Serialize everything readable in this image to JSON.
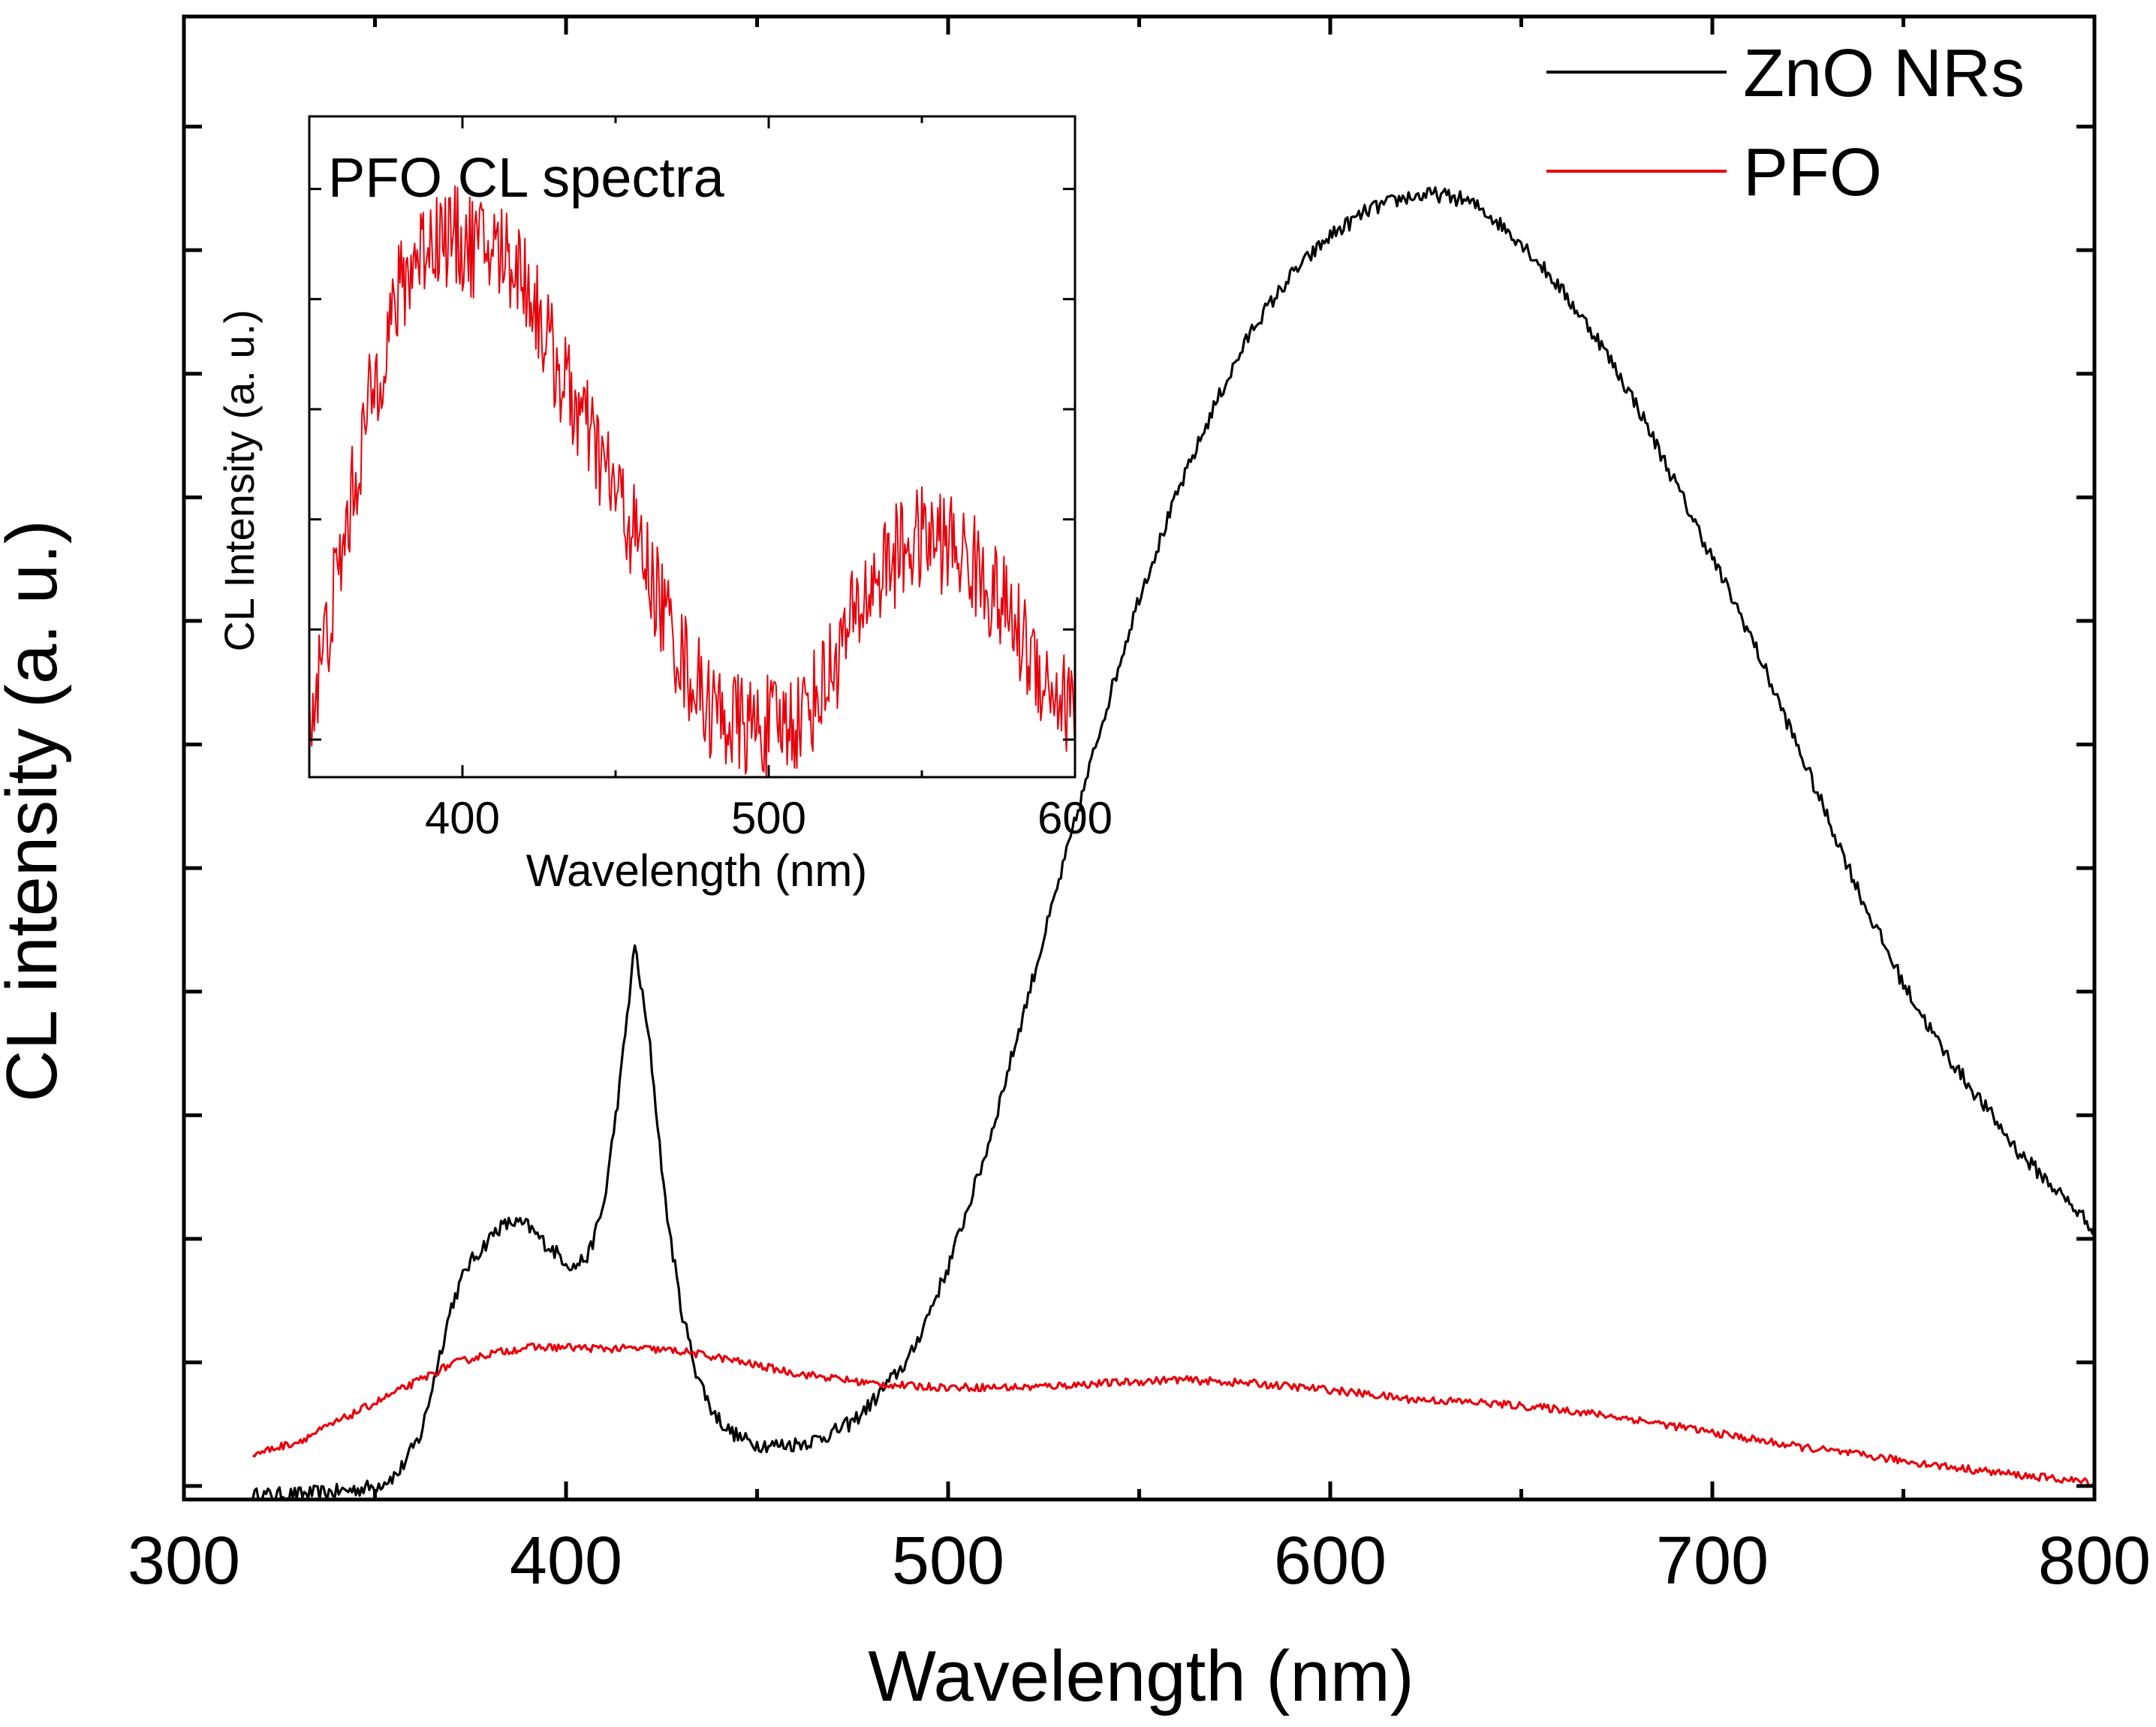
{
  "chart_data": [
    {
      "id": "main",
      "type": "line",
      "title": "",
      "xlabel": "Wavelength (nm)",
      "ylabel": "CL intensity (a. u.)",
      "xlim": [
        300,
        800
      ],
      "ylim": [
        0,
        1.15
      ],
      "x_ticks": [
        300,
        400,
        500,
        600,
        700,
        800
      ],
      "y_tick_count": 12,
      "legend": "top-right",
      "series": [
        {
          "name": "ZnO NRs",
          "color": "#000000",
          "x": [
            318,
            330,
            340,
            350,
            356,
            362,
            366,
            370,
            374,
            378,
            382,
            386,
            390,
            394,
            398,
            402,
            406,
            410,
            414,
            418,
            422,
            426,
            430,
            434,
            438,
            442,
            446,
            450,
            455,
            460,
            465,
            470,
            475,
            480,
            490,
            500,
            510,
            520,
            530,
            540,
            550,
            560,
            570,
            580,
            590,
            600,
            610,
            620,
            628,
            635,
            640,
            650,
            660,
            670,
            680,
            690,
            700,
            710,
            720,
            730,
            740,
            750,
            760,
            770,
            780,
            790,
            800
          ],
          "values": [
            0.003,
            0.004,
            0.006,
            0.01,
            0.02,
            0.05,
            0.1,
            0.15,
            0.18,
            0.195,
            0.21,
            0.215,
            0.212,
            0.2,
            0.19,
            0.18,
            0.19,
            0.23,
            0.32,
            0.43,
            0.35,
            0.23,
            0.15,
            0.1,
            0.07,
            0.055,
            0.047,
            0.043,
            0.042,
            0.043,
            0.046,
            0.052,
            0.06,
            0.075,
            0.11,
            0.18,
            0.27,
            0.38,
            0.49,
            0.6,
            0.7,
            0.78,
            0.85,
            0.91,
            0.95,
            0.98,
            1.0,
            1.01,
            1.012,
            1.008,
            1.0,
            0.975,
            0.94,
            0.9,
            0.85,
            0.79,
            0.73,
            0.67,
            0.6,
            0.53,
            0.46,
            0.4,
            0.35,
            0.31,
            0.27,
            0.24,
            0.21
          ],
          "noise": 0.006
        },
        {
          "name": "PFO",
          "color": "#e8000b",
          "x": [
            318,
            330,
            340,
            350,
            360,
            370,
            380,
            390,
            400,
            410,
            420,
            430,
            440,
            450,
            460,
            470,
            480,
            490,
            500,
            520,
            540,
            560,
            580,
            600,
            620,
            640,
            660,
            680,
            700,
            720,
            740,
            760,
            780,
            800
          ],
          "values": [
            0.035,
            0.045,
            0.06,
            0.075,
            0.09,
            0.105,
            0.113,
            0.118,
            0.118,
            0.117,
            0.117,
            0.115,
            0.11,
            0.104,
            0.098,
            0.094,
            0.09,
            0.088,
            0.087,
            0.087,
            0.09,
            0.093,
            0.09,
            0.085,
            0.078,
            0.075,
            0.07,
            0.062,
            0.052,
            0.042,
            0.034,
            0.026,
            0.019,
            0.013
          ],
          "noise": 0.003
        }
      ]
    },
    {
      "id": "inset",
      "type": "line",
      "title": "PFO CL spectra",
      "xlabel": "Wavelength (nm)",
      "ylabel": "CL Intensity (a. u.)",
      "xlim": [
        350,
        600
      ],
      "ylim": [
        0,
        1
      ],
      "x_ticks": [
        400,
        500,
        600
      ],
      "y_tick_count": 6,
      "series": [
        {
          "name": "PFO",
          "color": "#e8000b",
          "x": [
            350,
            355,
            360,
            365,
            370,
            375,
            380,
            385,
            390,
            395,
            400,
            405,
            410,
            415,
            420,
            425,
            430,
            435,
            440,
            445,
            450,
            455,
            460,
            465,
            470,
            475,
            480,
            485,
            490,
            495,
            500,
            505,
            510,
            515,
            520,
            525,
            530,
            535,
            540,
            545,
            550,
            555,
            560,
            565,
            570,
            575,
            580,
            585,
            590,
            595,
            600
          ],
          "values": [
            0.08,
            0.2,
            0.32,
            0.45,
            0.57,
            0.66,
            0.74,
            0.79,
            0.82,
            0.82,
            0.81,
            0.8,
            0.8,
            0.79,
            0.76,
            0.7,
            0.63,
            0.58,
            0.53,
            0.48,
            0.43,
            0.38,
            0.32,
            0.26,
            0.2,
            0.15,
            0.11,
            0.09,
            0.08,
            0.075,
            0.075,
            0.08,
            0.09,
            0.12,
            0.16,
            0.21,
            0.26,
            0.3,
            0.33,
            0.35,
            0.36,
            0.36,
            0.35,
            0.33,
            0.3,
            0.27,
            0.23,
            0.19,
            0.15,
            0.12,
            0.1
          ],
          "noise": 0.08
        }
      ]
    }
  ]
}
